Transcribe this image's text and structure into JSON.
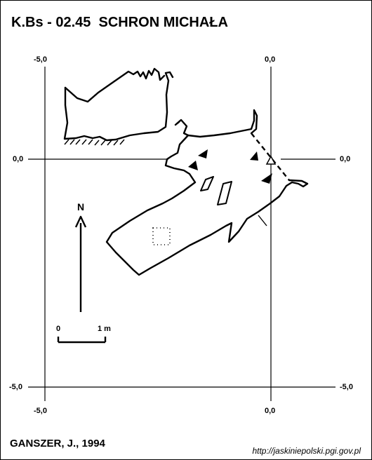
{
  "title": "K.Bs - 02.45  SCHRON MICHAŁA",
  "author": "GANSZER, J., 1994",
  "source": "http://jaskiniepolski.pgi.gov.pl",
  "grid": {
    "top_left": "-5,0",
    "top_right": "0,0",
    "left_upper": "0,0",
    "right_upper": "0,0",
    "left_lower": "-5,0",
    "right_lower": "-5,0",
    "bottom_left": "-5,0",
    "bottom_right": "0,0"
  },
  "north_label": "N",
  "scale": {
    "start": "0",
    "end": "1 m"
  },
  "colors": {
    "ink": "#000000",
    "background": "#ffffff"
  }
}
